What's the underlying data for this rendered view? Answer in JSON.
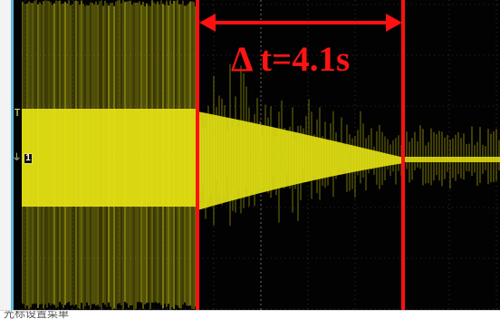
{
  "colors": {
    "waveform": "#e6e313",
    "marker": "#ff1111",
    "grid": "#5c5c5c",
    "background": "#020202",
    "left_accent": "#60b8dc"
  },
  "left_panel": {
    "trigger_marker": "T",
    "channel_number": "1",
    "ground_icon": "ground-icon"
  },
  "measurement": {
    "delta_label": "Δ t=4.1s"
  },
  "bottom_bar": {
    "text": "光标设置菜单"
  }
}
